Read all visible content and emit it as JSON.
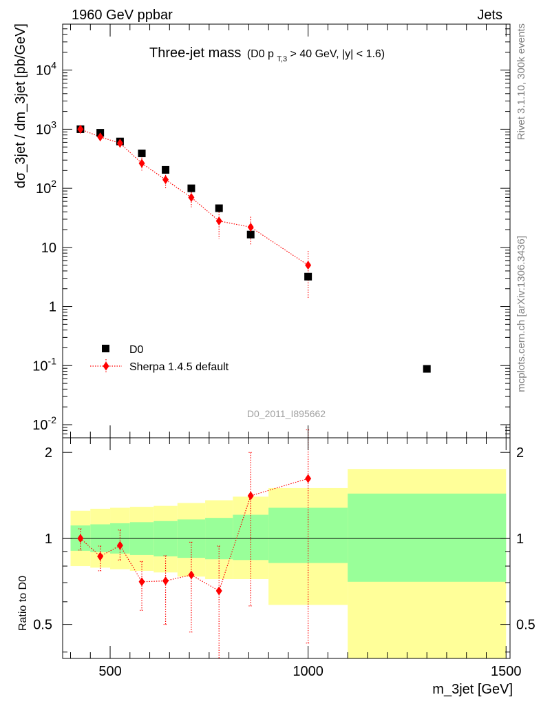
{
  "header": {
    "left": "1960 GeV ppbar",
    "right": "Jets"
  },
  "side_labels": {
    "rivet": "Rivet 3.1.10,  300k events",
    "mcplots": "mcplots.cern.ch [arXiv:1306.3436]"
  },
  "title": {
    "main": "Three-jet mass",
    "cut_open": "(D0 p",
    "cut_sub": "T,3",
    "cut_close": " > 40 GeV, |y| < 1.6)"
  },
  "analysis_id": "D0_2011_I895662",
  "colors": {
    "data": "#000000",
    "mc": "#ff0000",
    "band_inner": "#99ff99",
    "band_outer": "#ffff99",
    "side_text": "#808080",
    "analysis_text": "#a0a0a0"
  },
  "chart_data": [
    {
      "type": "scatter",
      "panel": "main",
      "ylabel": "dσ_3jet / dm_3jet [pb/GeV]",
      "yscale": "log",
      "ylim": [
        0.006,
        60000
      ],
      "xlim": [
        380,
        1510
      ],
      "ytick_labels": [
        {
          "base": "10",
          "exp": "-2"
        },
        {
          "base": "10",
          "exp": "-1"
        },
        {
          "base": "1",
          "exp": ""
        },
        {
          "base": "10",
          "exp": ""
        },
        {
          "base": "10",
          "exp": "2"
        },
        {
          "base": "10",
          "exp": "3"
        },
        {
          "base": "10",
          "exp": "4"
        }
      ],
      "legend_position": "lower-left",
      "series": [
        {
          "name": "D0",
          "marker": "square",
          "color": "#000000",
          "x": [
            425,
            475,
            525,
            580,
            640,
            705,
            775,
            855,
            1000,
            1300
          ],
          "y": [
            1000,
            870,
            620,
            390,
            205,
            100,
            46,
            16.5,
            3.2,
            0.088
          ]
        },
        {
          "name": "Sherpa 1.4.5 default",
          "marker": "diamond",
          "line": "dotted",
          "color": "#ff0000",
          "x": [
            425,
            475,
            525,
            580,
            640,
            705,
            775,
            855,
            1000
          ],
          "y": [
            1000,
            740,
            580,
            265,
            140,
            70,
            28,
            22,
            5.0
          ],
          "y_low": [
            850,
            660,
            490,
            200,
            100,
            48,
            14,
            11,
            1.4
          ],
          "y_high": [
            1150,
            830,
            680,
            330,
            185,
            95,
            44,
            33,
            8.7
          ]
        }
      ]
    },
    {
      "type": "scatter",
      "panel": "ratio",
      "xlabel": "m_3jet [GeV]",
      "ylabel": "Ratio to D0",
      "xlim": [
        380,
        1510
      ],
      "ylim": [
        0.38,
        2.25
      ],
      "xticks": [
        500,
        1000,
        1500
      ],
      "yticks": [
        0.5,
        1,
        2
      ],
      "reference_line": 1,
      "bands": {
        "edges": [
          400,
          450,
          500,
          550,
          610,
          670,
          740,
          810,
          900,
          1100,
          1500
        ],
        "inner_low": [
          0.905,
          0.895,
          0.885,
          0.875,
          0.865,
          0.855,
          0.845,
          0.84,
          0.82,
          0.705
        ],
        "inner_high": [
          1.11,
          1.12,
          1.13,
          1.14,
          1.15,
          1.165,
          1.18,
          1.21,
          1.28,
          1.435
        ],
        "outer_low": [
          0.8,
          0.79,
          0.78,
          0.77,
          0.76,
          0.735,
          0.72,
          0.72,
          0.585,
          0.3
        ],
        "outer_high": [
          1.25,
          1.27,
          1.28,
          1.29,
          1.3,
          1.33,
          1.36,
          1.4,
          1.5,
          1.75
        ]
      },
      "series": [
        {
          "name": "Sherpa 1.4.5 default",
          "color": "#ff0000",
          "x": [
            425,
            475,
            525,
            580,
            640,
            705,
            775,
            855,
            1000
          ],
          "y": [
            1.0,
            0.865,
            0.945,
            0.705,
            0.71,
            0.745,
            0.655,
            1.41,
            1.62
          ],
          "y_low": [
            0.91,
            0.77,
            0.84,
            0.56,
            0.5,
            0.47,
            0.3,
            0.58,
            0.43
          ],
          "y_high": [
            1.08,
            0.94,
            1.07,
            0.83,
            0.87,
            0.97,
            0.94,
            2.0,
            2.4
          ]
        }
      ]
    }
  ]
}
